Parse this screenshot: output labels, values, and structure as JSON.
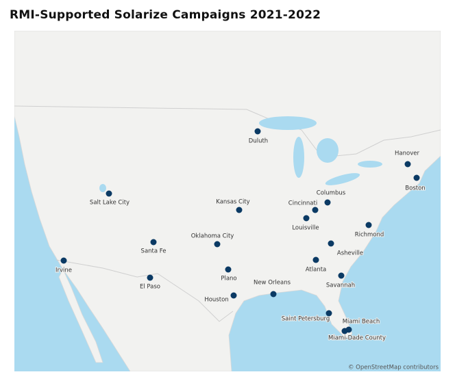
{
  "title": "RMI-Supported Solarize Campaigns 2021-2022",
  "cities": [
    "Duluth",
    "Hanover",
    "Boston",
    "Salt Lake City",
    "Kansas City",
    "Columbus",
    "Cincinnati",
    "Louisville",
    "Richmond",
    "Oklahoma City",
    "Santa Fe",
    "Asheville",
    "Irvine",
    "Atlanta",
    "Plano",
    "El Paso",
    "Savannah",
    "New Orleans",
    "Houston",
    "Saint Petersburg",
    "Miami Beach",
    "Miami-Dade County"
  ],
  "attribution": "© OpenStreetMap contributors"
}
